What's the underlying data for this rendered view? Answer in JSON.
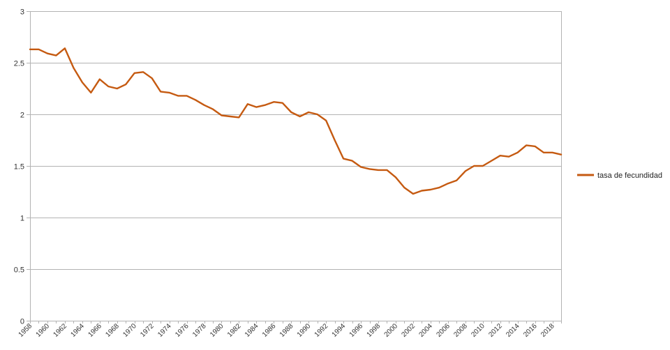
{
  "chart_data": {
    "type": "line",
    "title": "",
    "xlabel": "",
    "ylabel": "",
    "ylim": [
      0,
      3
    ],
    "yticks": [
      "0",
      "0.5",
      "1",
      "1.5",
      "2",
      "2.5",
      "3"
    ],
    "ytick_values": [
      0,
      0.5,
      1,
      1.5,
      2,
      2.5,
      3
    ],
    "grid": true,
    "legend_position": "right",
    "x": [
      1958,
      1959,
      1960,
      1961,
      1962,
      1963,
      1964,
      1965,
      1966,
      1967,
      1968,
      1969,
      1970,
      1971,
      1972,
      1973,
      1974,
      1975,
      1976,
      1977,
      1978,
      1979,
      1980,
      1981,
      1982,
      1983,
      1984,
      1985,
      1986,
      1987,
      1988,
      1989,
      1990,
      1991,
      1992,
      1993,
      1994,
      1995,
      1996,
      1997,
      1998,
      1999,
      2000,
      2001,
      2002,
      2003,
      2004,
      2005,
      2006,
      2007,
      2008,
      2009,
      2010,
      2011,
      2012,
      2013,
      2014,
      2015,
      2016,
      2017,
      2018,
      2019
    ],
    "xtick_labels": [
      "1958",
      "1960",
      "1962",
      "1964",
      "1966",
      "1968",
      "1970",
      "1972",
      "1974",
      "1976",
      "1978",
      "1980",
      "1982",
      "1984",
      "1986",
      "1988",
      "1990",
      "1992",
      "1994",
      "1996",
      "1998",
      "2000",
      "2002",
      "2004",
      "2006",
      "2008",
      "2010",
      "2012",
      "2014",
      "2016",
      "2018"
    ],
    "series": [
      {
        "name": "tasa de fecundidad",
        "color": "#c55a11",
        "values": [
          2.63,
          2.63,
          2.59,
          2.57,
          2.64,
          2.45,
          2.31,
          2.21,
          2.34,
          2.27,
          2.25,
          2.29,
          2.4,
          2.41,
          2.35,
          2.22,
          2.21,
          2.18,
          2.18,
          2.14,
          2.09,
          2.05,
          1.99,
          1.98,
          1.97,
          2.1,
          2.07,
          2.09,
          2.12,
          2.11,
          2.02,
          1.98,
          2.02,
          2.0,
          1.94,
          1.75,
          1.57,
          1.55,
          1.49,
          1.47,
          1.46,
          1.46,
          1.39,
          1.29,
          1.23,
          1.26,
          1.27,
          1.29,
          1.33,
          1.36,
          1.45,
          1.5,
          1.5,
          1.55,
          1.6,
          1.59,
          1.63,
          1.7,
          1.69,
          1.63,
          1.63,
          1.61
        ]
      }
    ]
  },
  "legend": {
    "label": "tasa de fecundidad"
  },
  "colors": {
    "line": "#c55a11",
    "grid": "#b3b3b3",
    "axis": "#b3b3b3",
    "text": "#333333"
  }
}
